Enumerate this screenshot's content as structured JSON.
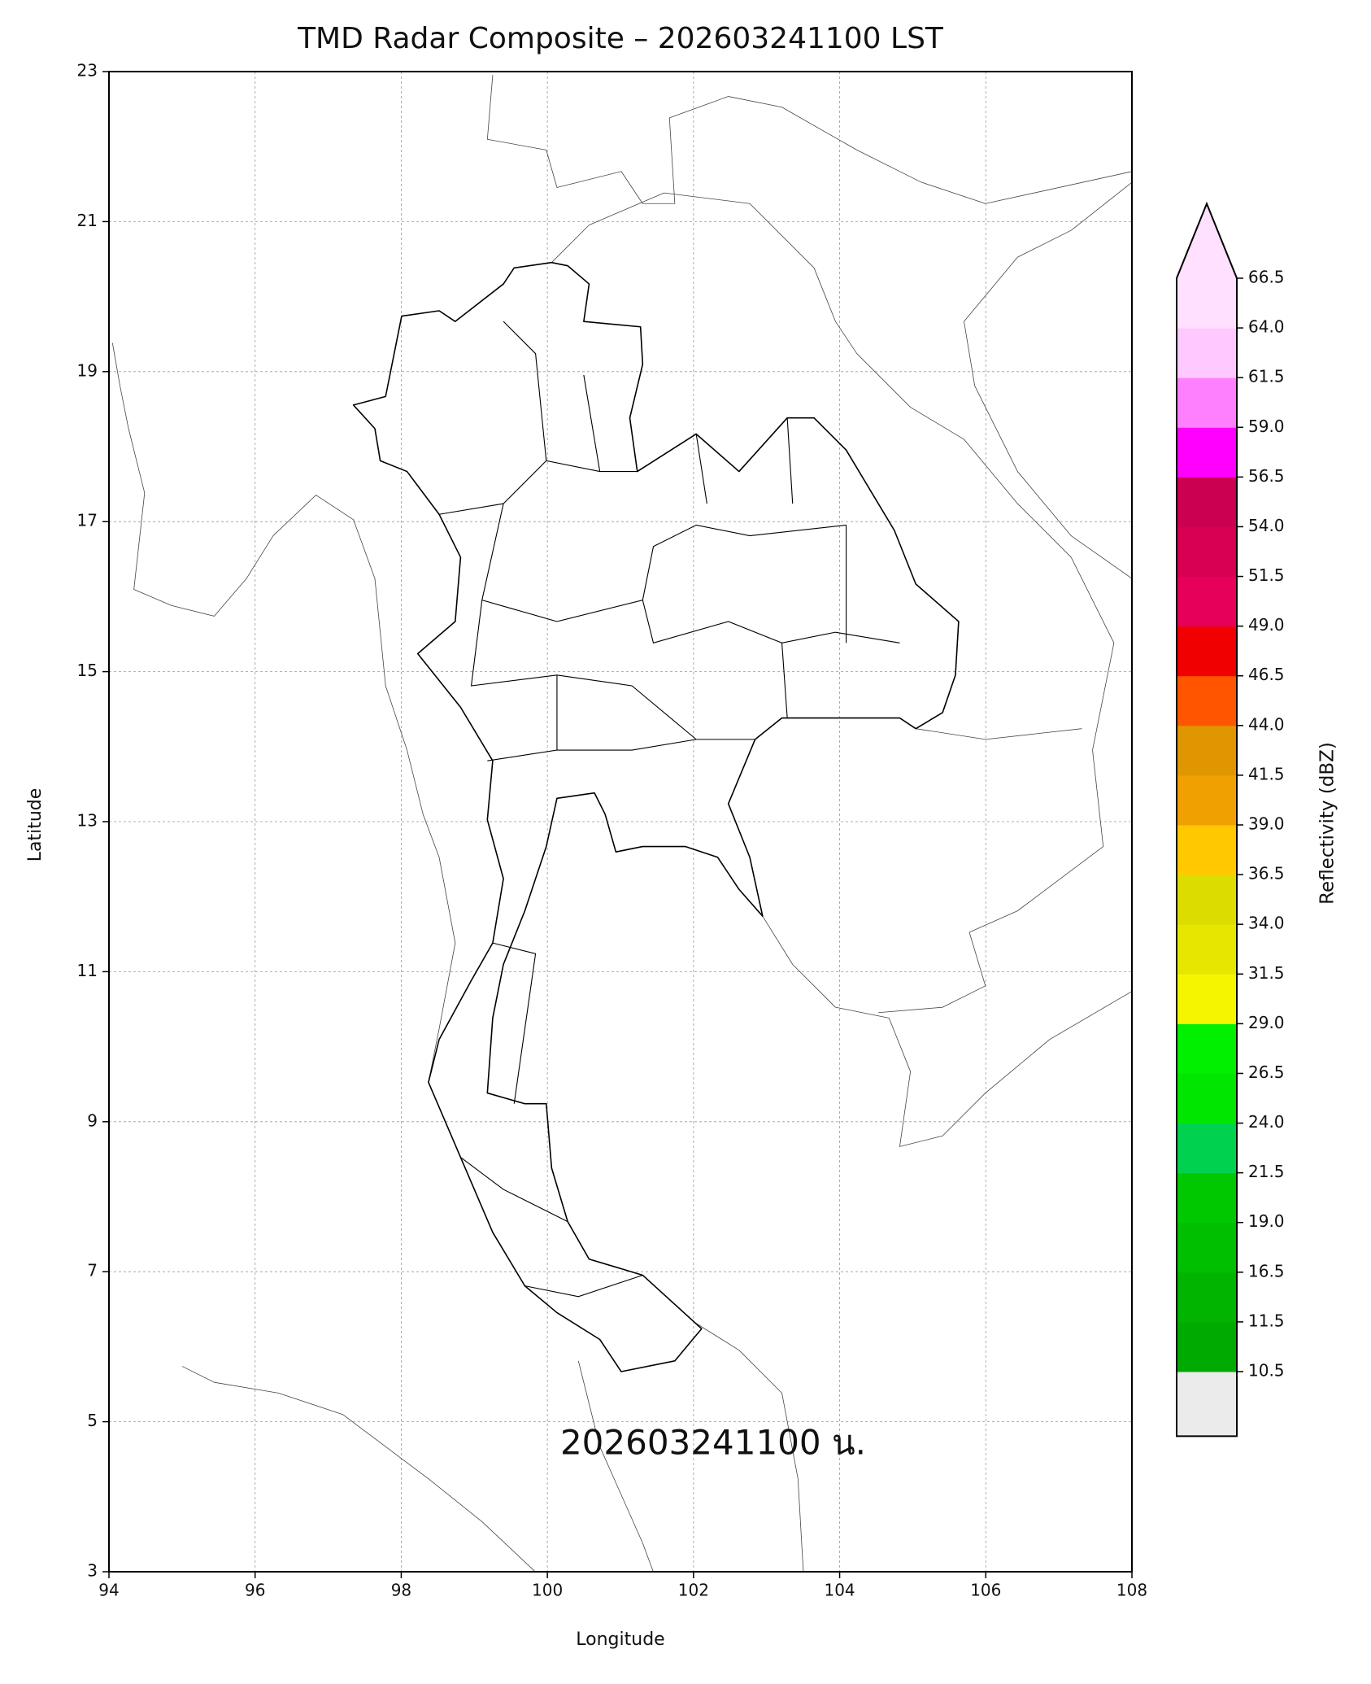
{
  "map": {
    "title": "TMD Radar Composite – 202603241100 LST",
    "xlabel": "Longitude",
    "ylabel": "Latitude",
    "xlim": [
      94,
      108
    ],
    "ylim": [
      3,
      23
    ],
    "xticks": [
      94,
      96,
      98,
      100,
      102,
      104,
      106,
      108
    ],
    "yticks": [
      3,
      5,
      7,
      9,
      11,
      13,
      15,
      17,
      19,
      21,
      23
    ],
    "grid": true,
    "annotation": "202603241100 น.",
    "colorbar": {
      "label": "Reflectivity (dBZ)",
      "ticks": [
        10.5,
        11.5,
        16.5,
        {
          "value": 19,
          "label": "19.0"
        },
        21.5,
        {
          "value": 24,
          "label": "24.0"
        },
        26.5,
        {
          "value": 29,
          "label": "29.0"
        },
        31.5,
        {
          "value": 34,
          "label": "34.0"
        },
        36.5,
        {
          "value": 39,
          "label": "39.0"
        },
        41.5,
        {
          "value": 44,
          "label": "44.0"
        },
        46.5,
        {
          "value": 49,
          "label": "49.0"
        },
        51.5,
        {
          "value": 54,
          "label": "54.0"
        },
        56.5,
        {
          "value": 59,
          "label": "59.0"
        },
        61.5,
        {
          "value": 64,
          "label": "64.0"
        },
        66.5
      ],
      "colors": [
        "#00aa00",
        "#00b400",
        "#00be00",
        "#00c800",
        "#00d250",
        "#00e600",
        "#00f000",
        "#f5f500",
        "#e6e600",
        "#dcdc00",
        "#ffc800",
        "#f0a000",
        "#e09600",
        "#ff5500",
        "#f00000",
        "#e6005a",
        "#d80050",
        "#cc0050",
        "#ff00ff",
        "#ff80ff",
        "#ffc8ff",
        "#ffe0ff"
      ],
      "under_color": "#ebebeb",
      "over_color": "#ffe0ff",
      "extend": "max"
    }
  }
}
